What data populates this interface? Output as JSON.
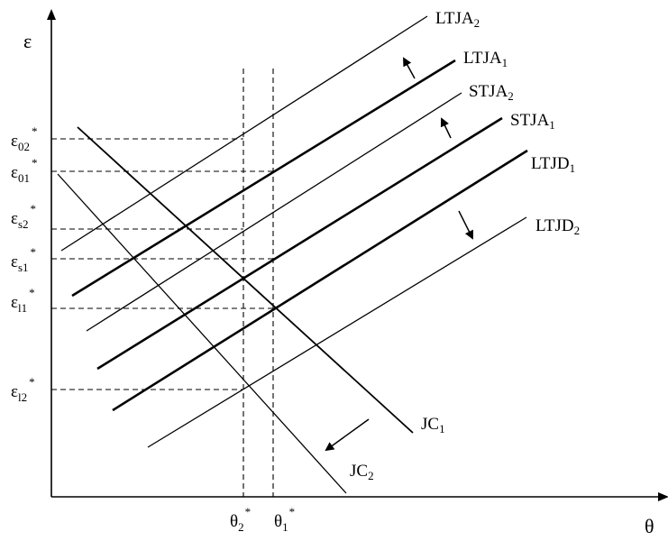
{
  "axes": {
    "y_label": "ε",
    "x_label": "θ"
  },
  "y_axis_labels": [
    {
      "name": "eps-02",
      "base": "ε",
      "sub": "02",
      "sup": "*"
    },
    {
      "name": "eps-01",
      "base": "ε",
      "sub": "01",
      "sup": "*"
    },
    {
      "name": "eps-s2",
      "base": "ε",
      "sub": "s2",
      "sup": "*"
    },
    {
      "name": "eps-s1",
      "base": "ε",
      "sub": "s1",
      "sup": "*"
    },
    {
      "name": "eps-l1",
      "base": "ε",
      "sub": "l1",
      "sup": "*"
    },
    {
      "name": "eps-l2",
      "base": "ε",
      "sub": "l2",
      "sup": "*"
    }
  ],
  "x_axis_labels": [
    {
      "name": "theta-2",
      "base": "θ",
      "sub": "2",
      "sup": "*"
    },
    {
      "name": "theta-1",
      "base": "θ",
      "sub": "1",
      "sup": "*"
    }
  ],
  "curve_labels": [
    {
      "name": "ltja-2",
      "base": "LTJA",
      "sub": "2"
    },
    {
      "name": "ltja-1",
      "base": "LTJA",
      "sub": "1"
    },
    {
      "name": "stja-2",
      "base": "STJA",
      "sub": "2"
    },
    {
      "name": "stja-1",
      "base": "STJA",
      "sub": "1"
    },
    {
      "name": "ltjd-1",
      "base": "LTJD",
      "sub": "1"
    },
    {
      "name": "ltjd-2",
      "base": "LTJD",
      "sub": "2"
    },
    {
      "name": "jc-1",
      "base": "JC",
      "sub": "1"
    },
    {
      "name": "jc-2",
      "base": "JC",
      "sub": "2"
    }
  ]
}
